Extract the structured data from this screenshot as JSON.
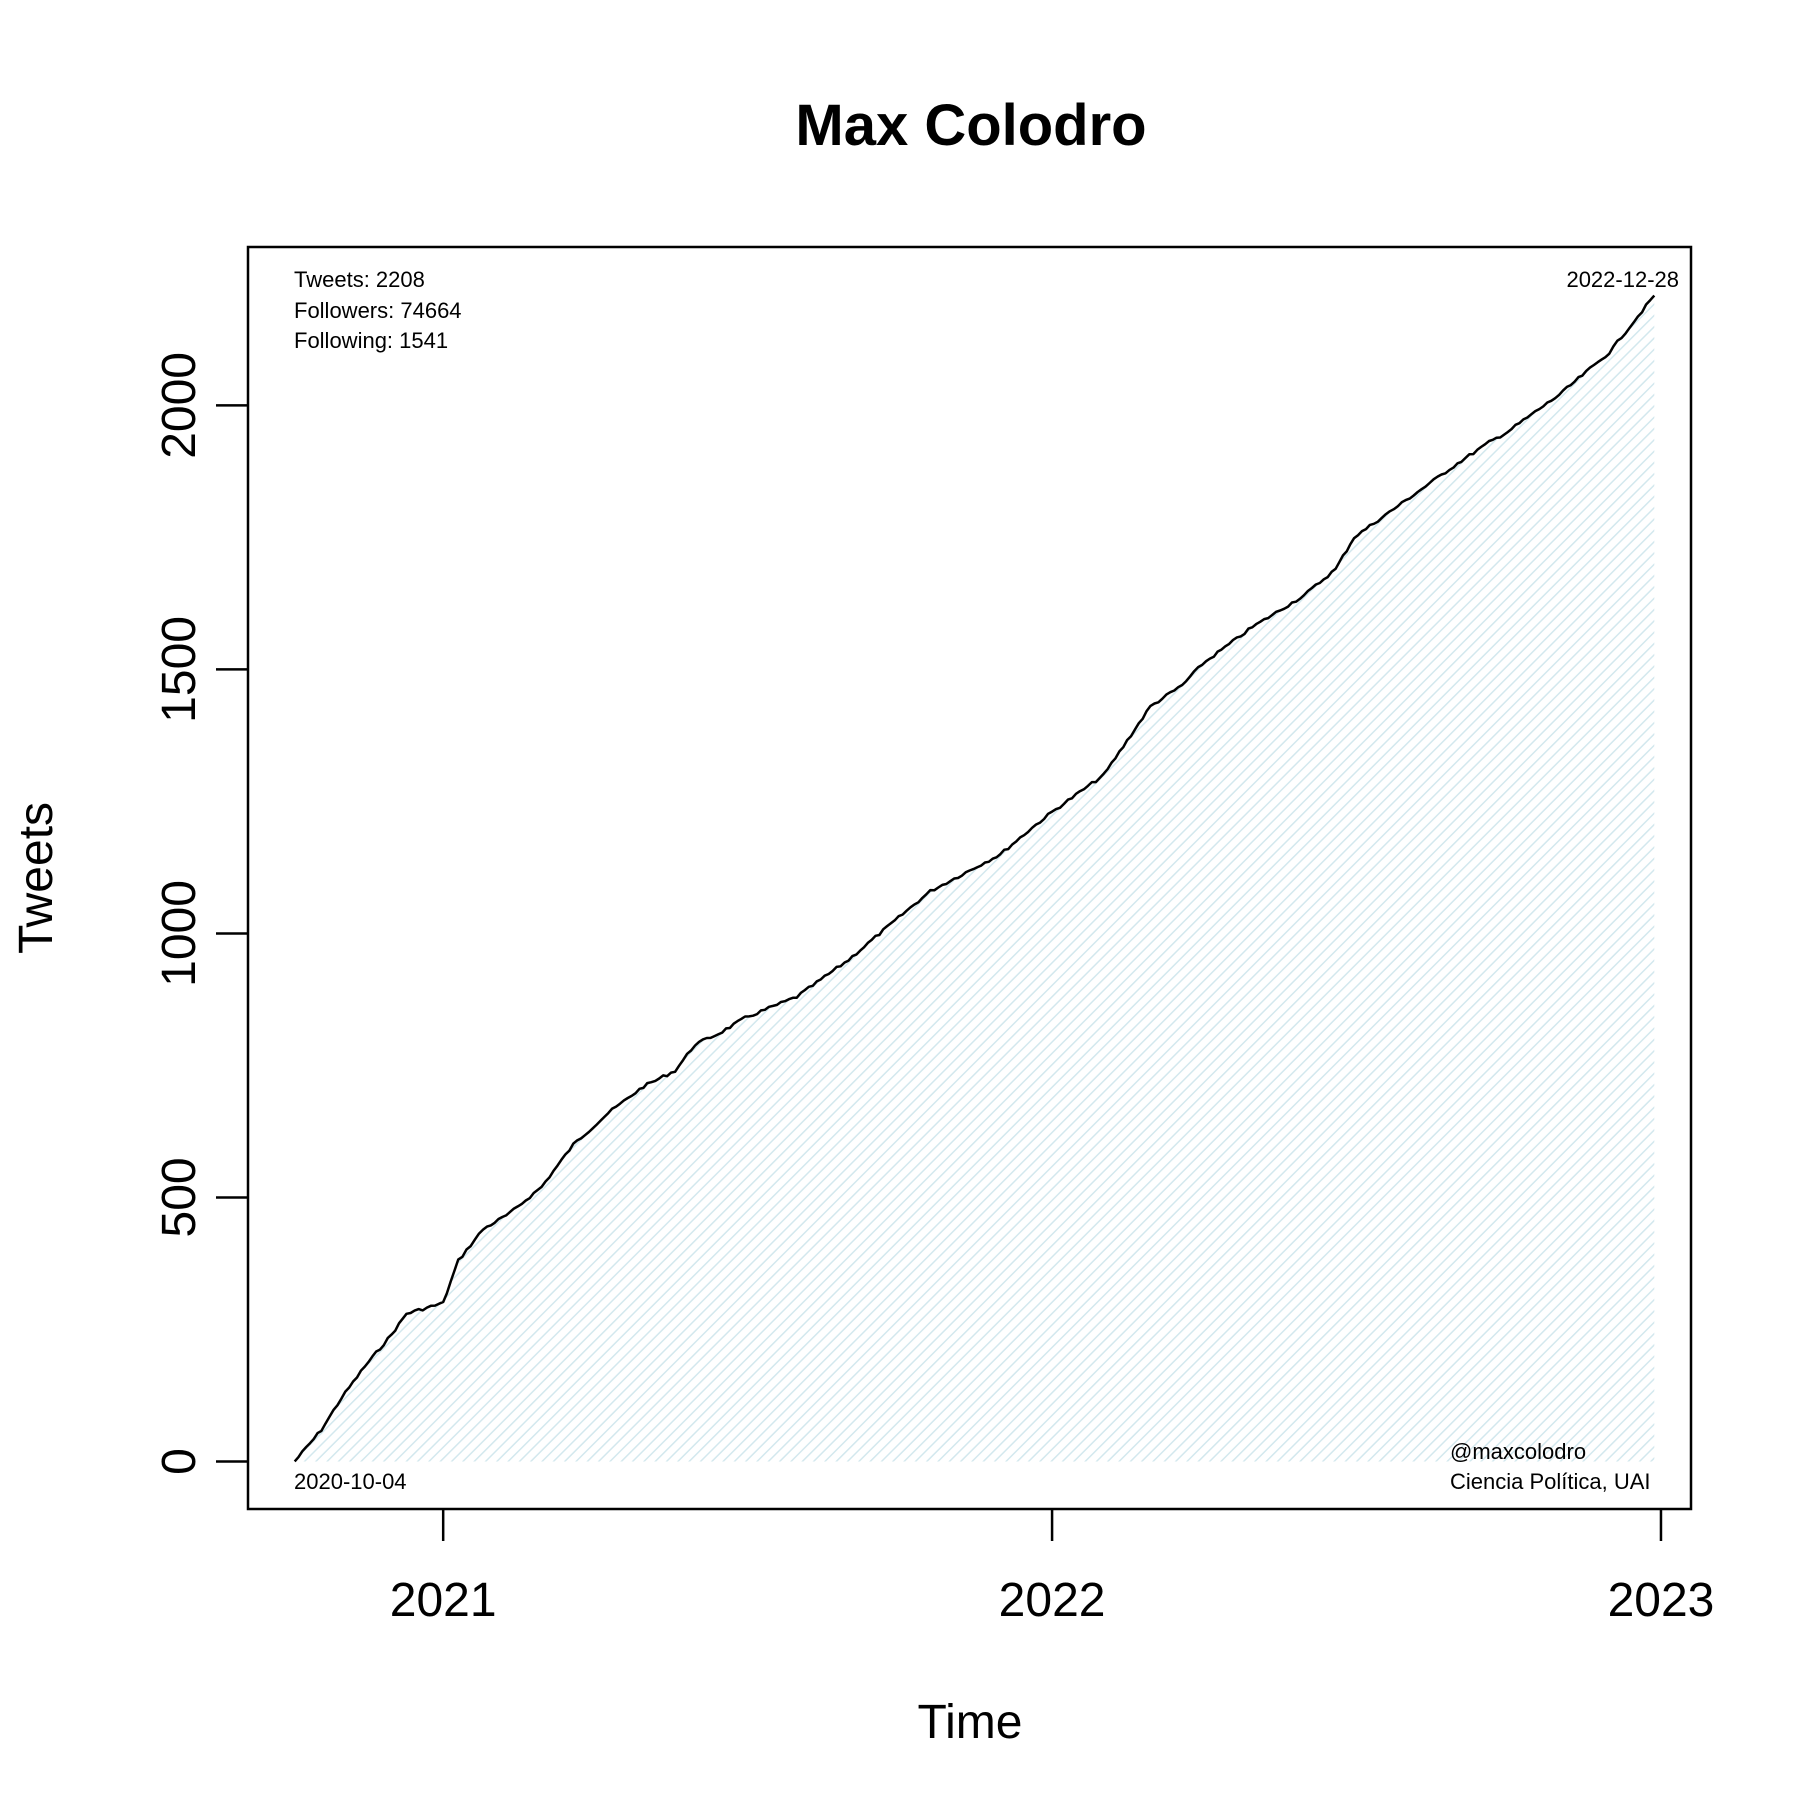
{
  "chart_data": {
    "type": "area",
    "title": "Max Colodro",
    "xlabel": "Time",
    "ylabel": "Tweets",
    "x_ticks": [
      "2021",
      "2022",
      "2023"
    ],
    "y_ticks": [
      0,
      500,
      1000,
      1500,
      2000
    ],
    "ylim": [
      -90,
      2300
    ],
    "xlim": [
      "2020-09-06",
      "2023-01-19"
    ],
    "grid": false,
    "line_color": "#000000",
    "fill_color": "#ddeef2",
    "series": [
      {
        "x": [
          "2020-10-04",
          "2020-10-20",
          "2020-11-01",
          "2020-11-15",
          "2020-12-01",
          "2020-12-10",
          "2021-01-01",
          "2021-01-10",
          "2021-01-25",
          "2021-02-10",
          "2021-03-01",
          "2021-03-20",
          "2021-04-10",
          "2021-05-01",
          "2021-05-20",
          "2021-06-01",
          "2021-06-15",
          "2021-07-01",
          "2021-08-01",
          "2021-09-01",
          "2021-10-01",
          "2021-10-20",
          "2021-11-01",
          "2021-12-01",
          "2021-12-20",
          "2022-01-01",
          "2022-02-01",
          "2022-03-01",
          "2022-03-20",
          "2022-04-01",
          "2022-05-01",
          "2022-06-01",
          "2022-06-20",
          "2022-07-01",
          "2022-08-01",
          "2022-09-01",
          "2022-09-20",
          "2022-10-01",
          "2022-11-01",
          "2022-12-01",
          "2022-12-28"
        ],
        "y": [
          0,
          60,
          120,
          180,
          240,
          280,
          300,
          380,
          440,
          470,
          520,
          600,
          660,
          710,
          740,
          790,
          810,
          840,
          880,
          950,
          1030,
          1080,
          1100,
          1150,
          1200,
          1230,
          1300,
          1430,
          1470,
          1510,
          1580,
          1640,
          1690,
          1750,
          1820,
          1890,
          1930,
          1950,
          2020,
          2100,
          2208
        ]
      }
    ]
  },
  "annotations": {
    "tweets": "Tweets: 2208",
    "followers": "Followers: 74664",
    "following": "Following: 1541",
    "end_date": "2022-12-28",
    "start_date": "2020-10-04",
    "handle": "@maxcolodro",
    "affiliation": "Ciencia Política, UAI"
  }
}
